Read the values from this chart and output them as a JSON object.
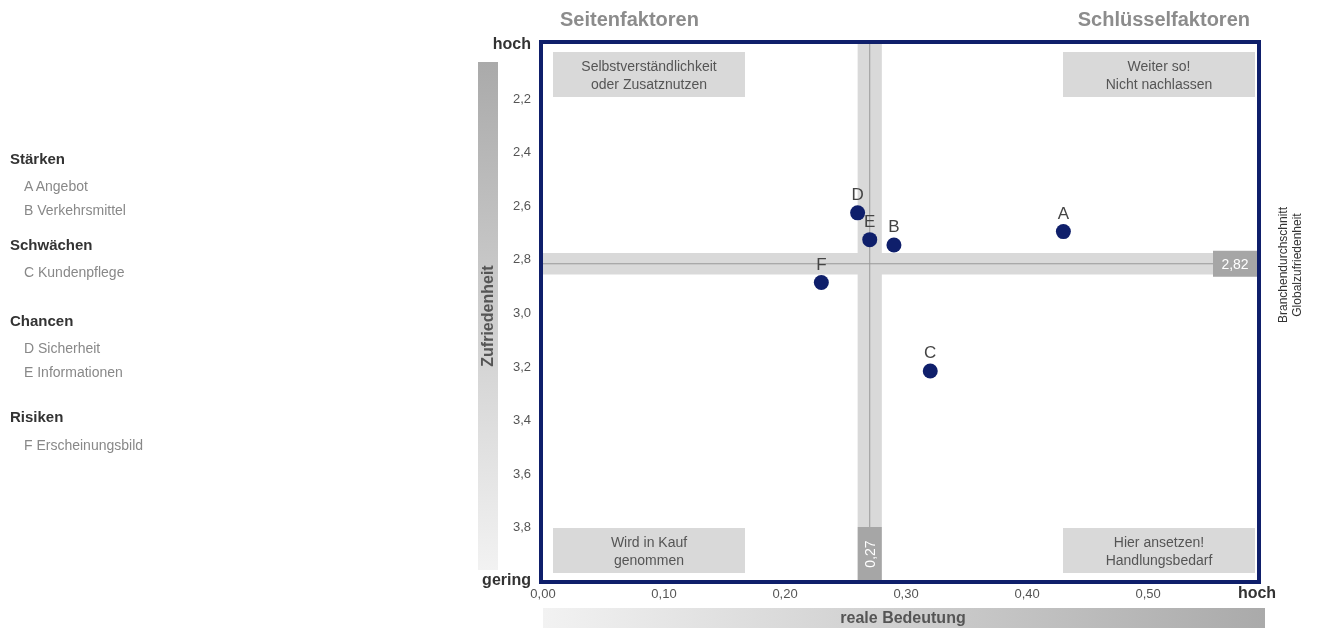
{
  "chart_data": {
    "type": "scatter",
    "xlabel": "reale Bedeutung",
    "ylabel": "Zufriedenheit",
    "xlim": [
      0,
      0.59
    ],
    "ylim": [
      4.0,
      2.0
    ],
    "xticks": [
      {
        "value": 0,
        "label": "0,00"
      },
      {
        "value": 0.1,
        "label": "0,10"
      },
      {
        "value": 0.2,
        "label": "0,20"
      },
      {
        "value": 0.3,
        "label": "0,30"
      },
      {
        "value": 0.4,
        "label": "0,40"
      },
      {
        "value": 0.5,
        "label": "0,50"
      },
      {
        "value": 0.59,
        "label": "hoch"
      }
    ],
    "yticks": [
      {
        "value": 2.0,
        "label": "hoch"
      },
      {
        "value": 2.2,
        "label": "2,2"
      },
      {
        "value": 2.4,
        "label": "2,4"
      },
      {
        "value": 2.6,
        "label": "2,6"
      },
      {
        "value": 2.8,
        "label": "2,8"
      },
      {
        "value": 3.0,
        "label": "3,0"
      },
      {
        "value": 3.2,
        "label": "3,2"
      },
      {
        "value": 3.4,
        "label": "3,4"
      },
      {
        "value": 3.6,
        "label": "3,6"
      },
      {
        "value": 3.8,
        "label": "3,8"
      },
      {
        "value": 4.0,
        "label": "gering"
      }
    ],
    "marker": "circle",
    "series": [
      {
        "color": "#0f1f6b",
        "x": [
          0.43,
          0.29,
          0.32,
          0.26,
          0.27,
          0.23
        ],
        "values": [
          2.7,
          2.75,
          3.22,
          2.63,
          2.73,
          2.89
        ],
        "value_labels": [
          "A",
          "B",
          "C",
          "D",
          "E",
          "F"
        ]
      }
    ],
    "ref_lines": [
      {
        "axis": "x",
        "value": 0.27,
        "label": "0,27",
        "color": "#999999"
      },
      {
        "axis": "y",
        "value": 2.82,
        "label": "2,82",
        "color": "#999999"
      }
    ],
    "bands": [
      {
        "axis": "x",
        "from": 0.26,
        "to": 0.28,
        "color": "#d9d9d9"
      },
      {
        "axis": "y",
        "from": 2.78,
        "to": 2.86,
        "color": "#d9d9d9"
      }
    ],
    "annotations": [
      "Seitenfaktoren",
      "Schlüsselfaktoren",
      "Selbstverständlichkeit\noder Zusatznutzen",
      "Weiter so!\nNicht nachlassen",
      "Wird in Kauf\ngenommen",
      "Hier ansetzen!\nHandlungsbedarf",
      "Branchendurchschnitt\nGlobalzufriedenheit",
      "Stärken",
      "A Angebot",
      "B Verkehrsmittel",
      "Schwächen",
      "C Kundenpflege",
      "Chancen",
      "D Sicherheit",
      "E Informationen",
      "Risiken",
      "F Erscheinungsbild"
    ]
  }
}
